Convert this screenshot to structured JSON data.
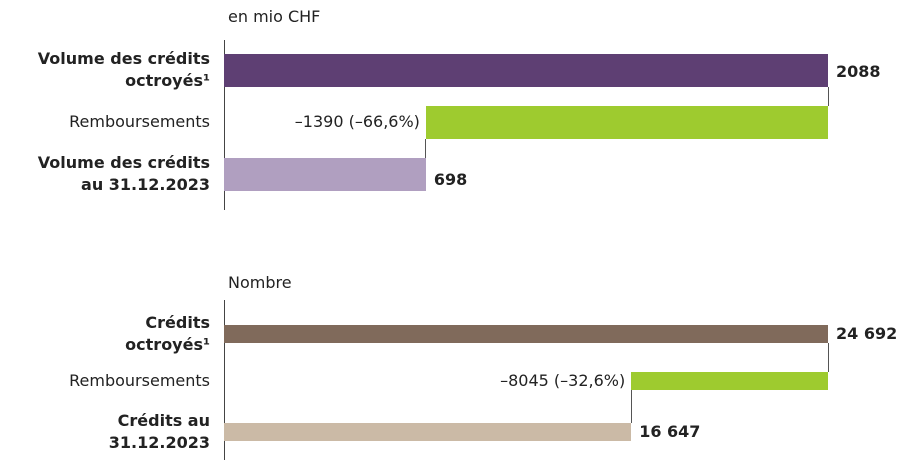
{
  "chart_data": [
    {
      "type": "waterfall",
      "unit_label": "en mio CHF",
      "categories": [
        "Volume des crédits\noctroyés¹",
        "Remboursements",
        "Volume des crédits\nau 31.12.2023"
      ],
      "measure": [
        "absolute",
        "relative",
        "total"
      ],
      "values": [
        2088,
        -1390,
        698
      ],
      "value_labels": [
        "2088",
        "–1390 (–66,6%)",
        "698"
      ],
      "colors": [
        "#5e3f73",
        "#9ecb2f",
        "#b09fc0"
      ],
      "xlim": [
        0,
        2088
      ]
    },
    {
      "type": "waterfall",
      "unit_label": "Nombre",
      "categories": [
        "Crédits\noctroyés¹",
        "Remboursements",
        "Crédits au\n31.12.2023"
      ],
      "measure": [
        "absolute",
        "relative",
        "total"
      ],
      "values": [
        24692,
        -8045,
        16647
      ],
      "value_labels": [
        "24 692",
        "–8045 (–32,6%)",
        "16 647"
      ],
      "colors": [
        "#806a5b",
        "#9ecb2f",
        "#cbbaa6"
      ],
      "xlim": [
        0,
        24692
      ]
    }
  ]
}
